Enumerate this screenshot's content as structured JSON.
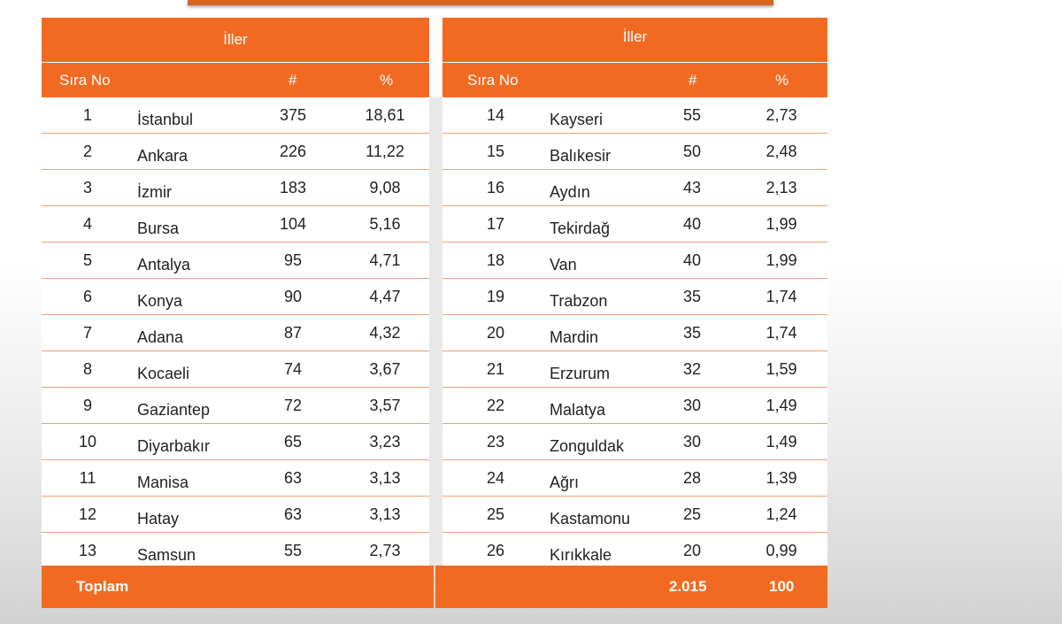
{
  "left": {
    "title": "İller",
    "headers": {
      "no": "Sıra No",
      "count": "#",
      "pct": "%"
    },
    "rows": [
      {
        "no": "1",
        "city": "İstanbul",
        "count": "375",
        "pct": "18,61"
      },
      {
        "no": "2",
        "city": "Ankara",
        "count": "226",
        "pct": "11,22"
      },
      {
        "no": "3",
        "city": "İzmir",
        "count": "183",
        "pct": "9,08"
      },
      {
        "no": "4",
        "city": "Bursa",
        "count": "104",
        "pct": "5,16"
      },
      {
        "no": "5",
        "city": "Antalya",
        "count": "95",
        "pct": "4,71"
      },
      {
        "no": "6",
        "city": "Konya",
        "count": "90",
        "pct": "4,47"
      },
      {
        "no": "7",
        "city": "Adana",
        "count": "87",
        "pct": "4,32"
      },
      {
        "no": "8",
        "city": "Kocaeli",
        "count": "74",
        "pct": "3,67"
      },
      {
        "no": "9",
        "city": "Gaziantep",
        "count": "72",
        "pct": "3,57"
      },
      {
        "no": "10",
        "city": "Diyarbakır",
        "count": "65",
        "pct": "3,23"
      },
      {
        "no": "11",
        "city": "Manisa",
        "count": "63",
        "pct": "3,13"
      },
      {
        "no": "12",
        "city": "Hatay",
        "count": "63",
        "pct": "3,13"
      },
      {
        "no": "13",
        "city": "Samsun",
        "count": "55",
        "pct": "2,73"
      }
    ]
  },
  "right": {
    "title": "İller",
    "headers": {
      "no": "Sıra No",
      "count": "#",
      "pct": "%"
    },
    "rows": [
      {
        "no": "14",
        "city": "Kayseri",
        "count": "55",
        "pct": "2,73"
      },
      {
        "no": "15",
        "city": "Balıkesir",
        "count": "50",
        "pct": "2,48"
      },
      {
        "no": "16",
        "city": "Aydın",
        "count": "43",
        "pct": "2,13"
      },
      {
        "no": "17",
        "city": "Tekirdağ",
        "count": "40",
        "pct": "1,99"
      },
      {
        "no": "18",
        "city": "Van",
        "count": "40",
        "pct": "1,99"
      },
      {
        "no": "19",
        "city": "Trabzon",
        "count": "35",
        "pct": "1,74"
      },
      {
        "no": "20",
        "city": "Mardin",
        "count": "35",
        "pct": "1,74"
      },
      {
        "no": "21",
        "city": "Erzurum",
        "count": "32",
        "pct": "1,59"
      },
      {
        "no": "22",
        "city": "Malatya",
        "count": "30",
        "pct": "1,49"
      },
      {
        "no": "23",
        "city": "Zonguldak",
        "count": "30",
        "pct": "1,49"
      },
      {
        "no": "24",
        "city": "Ağrı",
        "count": "28",
        "pct": "1,39"
      },
      {
        "no": "25",
        "city": "Kastamonu",
        "count": "25",
        "pct": "1,24"
      },
      {
        "no": "26",
        "city": "Kırıkkale",
        "count": "20",
        "pct": "0,99"
      }
    ]
  },
  "footer": {
    "label": "Toplam",
    "total_count": "2.015",
    "total_pct": "100"
  },
  "colors": {
    "accent": "#f26a21",
    "row_border": "#f0a070"
  }
}
